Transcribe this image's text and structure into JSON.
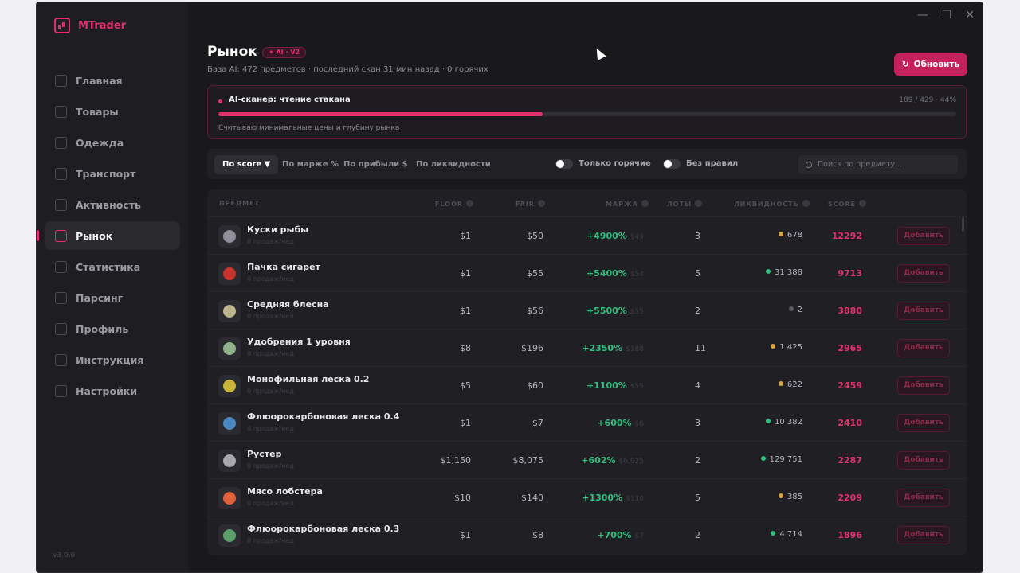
{
  "app": {
    "name": "MTrader",
    "version": "v3.0.0"
  },
  "window_controls": [
    "—",
    "☐",
    "✕"
  ],
  "sidebar": {
    "items": [
      {
        "label": "Главная",
        "icon": "grid-icon"
      },
      {
        "label": "Товары",
        "icon": "box-icon"
      },
      {
        "label": "Одежда",
        "icon": "shirt-icon"
      },
      {
        "label": "Транспорт",
        "icon": "car-icon"
      },
      {
        "label": "Активность",
        "icon": "activity-icon"
      },
      {
        "label": "Рынок",
        "icon": "chart-icon",
        "active": true
      },
      {
        "label": "Статистика",
        "icon": "stats-icon"
      },
      {
        "label": "Парсинг",
        "icon": "download-icon"
      },
      {
        "label": "Профиль",
        "icon": "user-icon"
      },
      {
        "label": "Инструкция",
        "icon": "book-icon"
      },
      {
        "label": "Настройки",
        "icon": "gear-icon"
      }
    ]
  },
  "header": {
    "title": "Рынок",
    "badge": "✦ AI · V2",
    "subtitle": "База AI: 472 предметов · последний скан 31 мин назад · 0 горячих",
    "refresh_label": "Обновить"
  },
  "scanner": {
    "title": "AI-сканер: чтение стакана",
    "count": "189 / 429 · 44%",
    "progress": 0.44,
    "status": "Считываю минимальные цены и глубину рынка"
  },
  "filters": {
    "sort_tabs": [
      "По score ▼",
      "По марже %",
      "По прибыли $",
      "По ликвидности"
    ],
    "toggle_hot": "Только горячие",
    "toggle_rules": "Без правил",
    "search_placeholder": "Поиск по предмету..."
  },
  "table": {
    "headers": {
      "item": "ПРЕДМЕТ",
      "floor": "FLOOR",
      "fair": "FAIR",
      "margin": "МАРЖА",
      "lots": "ЛОТЫ",
      "liquidity": "ЛИКВИДНОСТЬ",
      "score": "SCORE"
    },
    "add_label": "Добавить",
    "colors": {
      "accent": "#e0326a",
      "green": "#2fbf7f",
      "amber": "#d9a441",
      "gray": "#5b5b62"
    },
    "rows": [
      {
        "name": "Куски рыбы",
        "sub": "0 продаж/нед",
        "floor": "$1",
        "fair": "$50",
        "margin": "+4900%",
        "margin_sub": "$49",
        "lots": "3",
        "liq": "678",
        "liq_color": "#d9a441",
        "score": "12292",
        "thumb": "#8f8f99"
      },
      {
        "name": "Пачка сигарет",
        "sub": "0 продаж/нед",
        "floor": "$1",
        "fair": "$55",
        "margin": "+5400%",
        "margin_sub": "$54",
        "lots": "5",
        "liq": "31 388",
        "liq_color": "#2fbf7f",
        "score": "9713",
        "thumb": "#c8332c"
      },
      {
        "name": "Средняя блесна",
        "sub": "0 продаж/нед",
        "floor": "$1",
        "fair": "$56",
        "margin": "+5500%",
        "margin_sub": "$55",
        "lots": "2",
        "liq": "2",
        "liq_color": "#5b5b62",
        "score": "3880",
        "thumb": "#b9b48a"
      },
      {
        "name": "Удобрения 1 уровня",
        "sub": "0 продаж/нед",
        "floor": "$8",
        "fair": "$196",
        "margin": "+2350%",
        "margin_sub": "$188",
        "lots": "11",
        "liq": "1 425",
        "liq_color": "#d9a441",
        "score": "2965",
        "thumb": "#8fb28a"
      },
      {
        "name": "Монофильная леска 0.2",
        "sub": "0 продаж/нед",
        "floor": "$5",
        "fair": "$60",
        "margin": "+1100%",
        "margin_sub": "$55",
        "lots": "4",
        "liq": "622",
        "liq_color": "#d9a441",
        "score": "2459",
        "thumb": "#c9b43a"
      },
      {
        "name": "Флюорокарбоновая леска 0.4",
        "sub": "0 продаж/нед",
        "floor": "$1",
        "fair": "$7",
        "margin": "+600%",
        "margin_sub": "$6",
        "lots": "3",
        "liq": "10 382",
        "liq_color": "#2fbf7f",
        "score": "2410",
        "thumb": "#4a86c2"
      },
      {
        "name": "Рустер",
        "sub": "0 продаж/нед",
        "floor": "$1,150",
        "fair": "$8,075",
        "margin": "+602%",
        "margin_sub": "$6,925",
        "lots": "2",
        "liq": "129 751",
        "liq_color": "#2fbf7f",
        "score": "2287",
        "thumb": "#a8a8b0"
      },
      {
        "name": "Мясо лобстера",
        "sub": "0 продаж/нед",
        "floor": "$10",
        "fair": "$140",
        "margin": "+1300%",
        "margin_sub": "$130",
        "lots": "5",
        "liq": "385",
        "liq_color": "#d9a441",
        "score": "2209",
        "thumb": "#e0623a"
      },
      {
        "name": "Флюорокарбоновая леска 0.3",
        "sub": "0 продаж/нед",
        "floor": "$1",
        "fair": "$8",
        "margin": "+700%",
        "margin_sub": "$7",
        "lots": "2",
        "liq": "4 714",
        "liq_color": "#2fbf7f",
        "score": "1896",
        "thumb": "#5aa06a"
      }
    ]
  }
}
